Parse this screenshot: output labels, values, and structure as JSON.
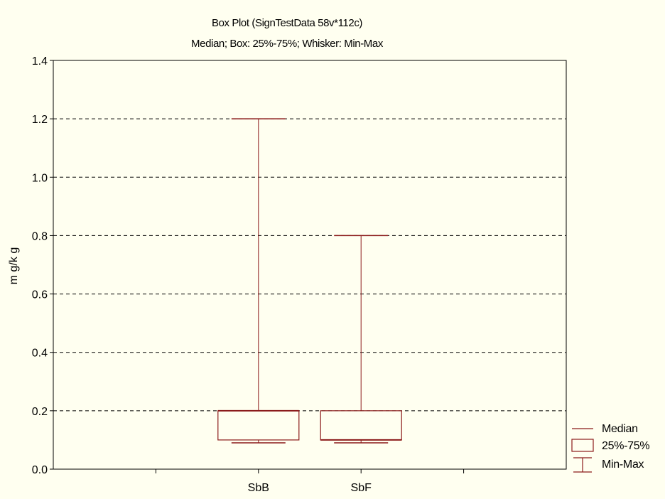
{
  "chart_data": {
    "type": "box",
    "title": "Box Plot (SignTestData 58v*112c)",
    "subtitle": "Median; Box: 25%-75%; Whisker: Min-Max",
    "xlabel": "",
    "ylabel": "m g/k g",
    "ylim": [
      0.0,
      1.4
    ],
    "yticks": [
      "0.0",
      "0.2",
      "0.4",
      "0.6",
      "0.8",
      "1.0",
      "1.2",
      "1.4"
    ],
    "ytick_values": [
      0.0,
      0.2,
      0.4,
      0.6,
      0.8,
      1.0,
      1.2,
      1.4
    ],
    "grid": "horizontal-dashed",
    "categories": [
      "SbB",
      "SbF"
    ],
    "boxes": [
      {
        "category": "SbB",
        "min": 0.09,
        "q1": 0.1,
        "median": 0.2,
        "q3": 0.2,
        "max": 1.2
      },
      {
        "category": "SbF",
        "min": 0.09,
        "q1": 0.1,
        "median": 0.1,
        "q3": 0.2,
        "max": 0.8
      }
    ],
    "legend": {
      "placement": "bottom-right",
      "entries": [
        "Median",
        "25%-75%",
        "Min-Max"
      ]
    },
    "colors": {
      "box": "#8b1a1a",
      "background": "#fffff0",
      "grid": "#000000"
    }
  }
}
